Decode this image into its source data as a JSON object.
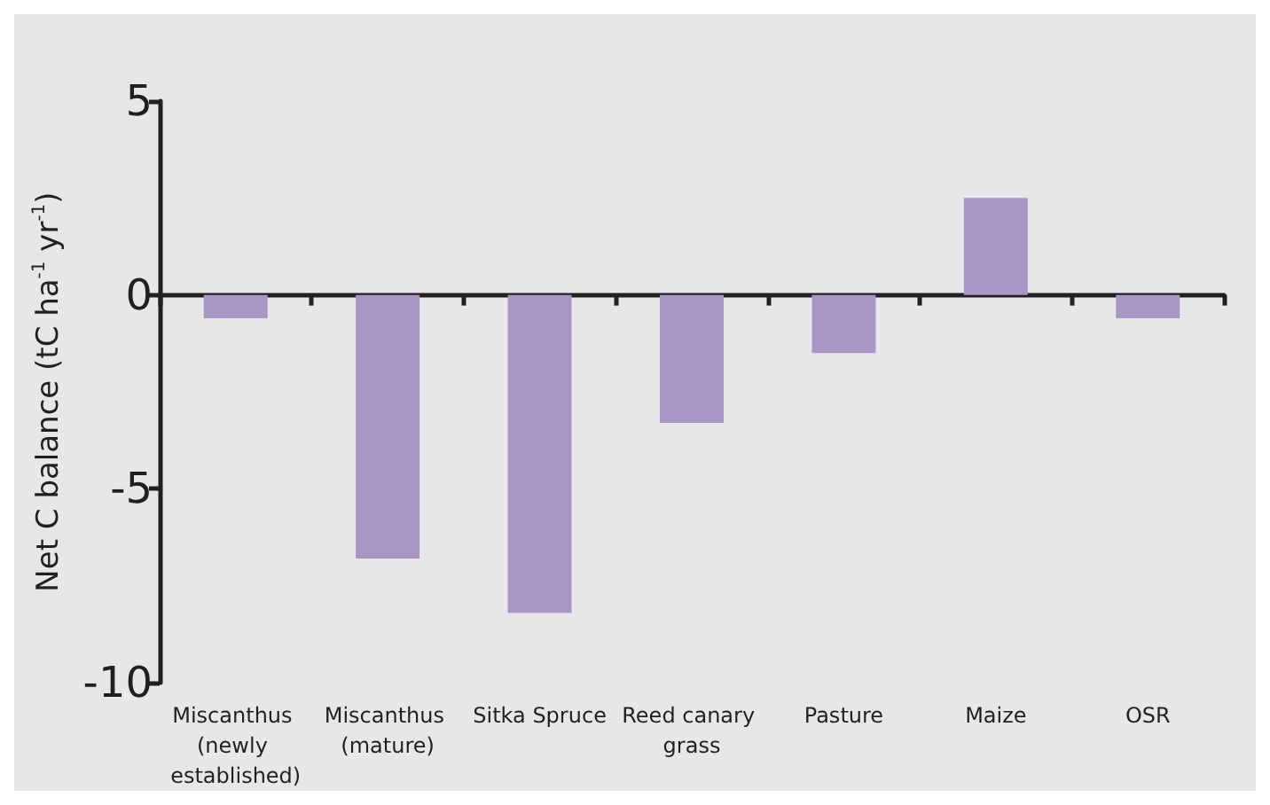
{
  "chart_data": {
    "type": "bar",
    "ylabel": "Net C balance (tC ha$^{-1}$ yr$^{-1}$)",
    "categories": [
      "Miscanthus (newly established)",
      "Miscanthus (mature)",
      "Sitka Spruce",
      "Reed canary grass",
      "Pasture",
      "Maize",
      "OSR"
    ],
    "values": [
      -0.6,
      -6.8,
      -8.2,
      -3.3,
      -1.5,
      2.5,
      -0.6
    ],
    "color": "#a996c6",
    "ylim": [
      -10,
      5
    ],
    "yticks": [
      -10,
      -5,
      0,
      5
    ]
  }
}
